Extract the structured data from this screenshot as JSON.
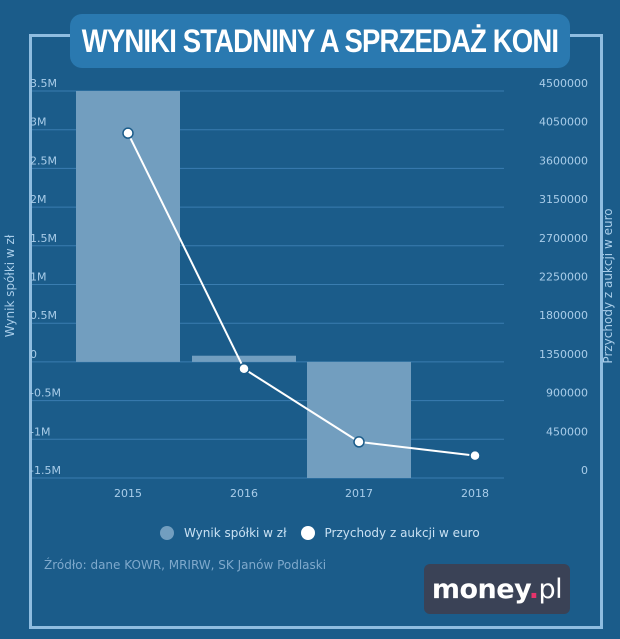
{
  "title": "WYNIKI STADNINY A SPRZEDAŻ KONI",
  "chart_data": {
    "type": "bar+line",
    "title": "WYNIKI STADNINY A SPRZEDAŻ KONI",
    "categories": [
      "2015",
      "2016",
      "2017",
      "2018"
    ],
    "series": [
      {
        "name": "Wynik spółki w zł",
        "type": "bar",
        "axis": "left",
        "color": "#729ebf",
        "values": [
          3500000,
          80000,
          -1500000,
          null
        ]
      },
      {
        "name": "Przychody z aukcji w euro",
        "type": "line",
        "axis": "right",
        "color": "#ffffff",
        "values": [
          4010000,
          1270000,
          420000,
          260000
        ]
      }
    ],
    "left_axis": {
      "label": "Wynik spółki w zł",
      "ticks": [
        "3.5M",
        "3M",
        "2.5M",
        "2M",
        "1.5M",
        "1M",
        "0.5M",
        "0",
        "-0.5M",
        "-1M",
        "-1.5M"
      ],
      "range": [
        -1500000,
        3500000
      ]
    },
    "right_axis": {
      "label": "Przychody z aukcji w euro",
      "ticks": [
        "4500000",
        "4050000",
        "3600000",
        "3150000",
        "2700000",
        "2250000",
        "1800000",
        "1350000",
        "900000",
        "450000",
        "0"
      ],
      "range": [
        0,
        4500000
      ]
    },
    "grid": true,
    "legend_position": "bottom"
  },
  "legend": [
    {
      "label": "Wynik spółki w zł",
      "color": "#729ebf"
    },
    {
      "label": "Przychody z aukcji w euro",
      "color": "#ffffff"
    }
  ],
  "source": "Źródło: dane KOWR, MRIRW, SK Janów Podlaski",
  "logo": {
    "main": "money",
    "dot": ".",
    "suffix": "pl"
  }
}
